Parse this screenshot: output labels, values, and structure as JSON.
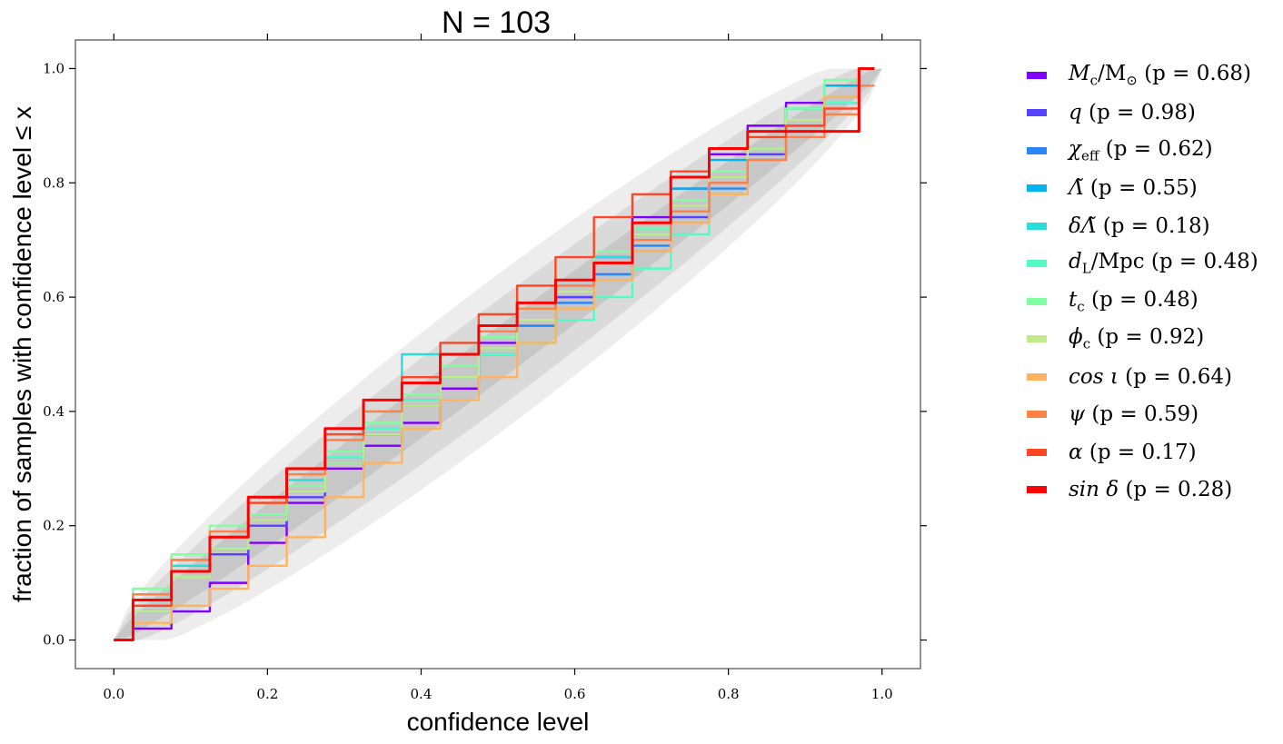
{
  "chart_data": {
    "type": "line",
    "title": "N = 103",
    "xlabel": "confidence level",
    "ylabel": "fraction of samples with confidence level ≤ x",
    "xlim": [
      -0.05,
      1.05
    ],
    "ylim": [
      -0.05,
      1.05
    ],
    "xticks": [
      0.0,
      0.2,
      0.4,
      0.6,
      0.8,
      1.0
    ],
    "yticks": [
      0.0,
      0.2,
      0.4,
      0.6,
      0.8,
      1.0
    ],
    "xtick_labels": [
      "0.0",
      "0.2",
      "0.4",
      "0.6",
      "0.8",
      "1.0"
    ],
    "ytick_labels": [
      "0.0",
      "0.2",
      "0.4",
      "0.6",
      "0.8",
      "1.0"
    ],
    "grid": false,
    "legend_position": "outside-right",
    "bands": [
      {
        "sigma": 3,
        "half_width_at_center": 0.14,
        "color": "#d8d8d8",
        "opacity": 0.45
      },
      {
        "sigma": 2,
        "half_width_at_center": 0.095,
        "color": "#c8c8c8",
        "opacity": 0.5
      },
      {
        "sigma": 1,
        "half_width_at_center": 0.048,
        "color": "#b8b8b8",
        "opacity": 0.55
      }
    ],
    "x": [
      0.0,
      0.05,
      0.1,
      0.15,
      0.2,
      0.25,
      0.3,
      0.35,
      0.4,
      0.45,
      0.5,
      0.55,
      0.6,
      0.65,
      0.7,
      0.75,
      0.8,
      0.85,
      0.9,
      0.95,
      0.99
    ],
    "series": [
      {
        "name": "Mc/M⊙ (p = 0.68)",
        "color": "#7f00ff",
        "values": [
          0.0,
          0.02,
          0.05,
          0.1,
          0.17,
          0.24,
          0.3,
          0.34,
          0.38,
          0.44,
          0.52,
          0.56,
          0.6,
          0.67,
          0.74,
          0.79,
          0.85,
          0.9,
          0.94,
          0.97,
          1.0
        ]
      },
      {
        "name": "q (p = 0.98)",
        "color": "#5544fe",
        "values": [
          0.0,
          0.06,
          0.11,
          0.15,
          0.2,
          0.25,
          0.31,
          0.36,
          0.42,
          0.46,
          0.51,
          0.55,
          0.6,
          0.64,
          0.68,
          0.74,
          0.8,
          0.85,
          0.9,
          0.95,
          1.0
        ]
      },
      {
        "name": "χeff (p = 0.62)",
        "color": "#2a85f9",
        "values": [
          0.0,
          0.07,
          0.14,
          0.18,
          0.22,
          0.27,
          0.32,
          0.37,
          0.41,
          0.46,
          0.5,
          0.55,
          0.59,
          0.64,
          0.69,
          0.73,
          0.79,
          0.84,
          0.89,
          0.94,
          1.0
        ]
      },
      {
        "name": "Λ̃ (p = 0.55)",
        "color": "#00b5eb",
        "values": [
          0.0,
          0.05,
          0.12,
          0.16,
          0.21,
          0.26,
          0.31,
          0.36,
          0.41,
          0.46,
          0.51,
          0.56,
          0.61,
          0.66,
          0.72,
          0.79,
          0.84,
          0.89,
          0.93,
          0.97,
          1.0
        ]
      },
      {
        "name": "δΛ̃ (p = 0.18)",
        "color": "#2adddd",
        "values": [
          0.0,
          0.08,
          0.13,
          0.18,
          0.22,
          0.28,
          0.33,
          0.4,
          0.5,
          0.52,
          0.55,
          0.59,
          0.63,
          0.67,
          0.71,
          0.76,
          0.81,
          0.86,
          0.9,
          0.95,
          1.0
        ]
      },
      {
        "name": "dL/Mpc (p = 0.48)",
        "color": "#55fbc5",
        "values": [
          0.0,
          0.06,
          0.11,
          0.16,
          0.21,
          0.27,
          0.32,
          0.37,
          0.42,
          0.46,
          0.5,
          0.52,
          0.56,
          0.6,
          0.65,
          0.71,
          0.78,
          0.84,
          0.89,
          0.94,
          1.0
        ]
      },
      {
        "name": "tc (p = 0.48)",
        "color": "#80fea0",
        "values": [
          0.0,
          0.09,
          0.15,
          0.2,
          0.22,
          0.27,
          0.33,
          0.38,
          0.43,
          0.48,
          0.53,
          0.58,
          0.63,
          0.68,
          0.72,
          0.77,
          0.82,
          0.88,
          0.93,
          0.98,
          1.0
        ]
      },
      {
        "name": "ϕc (p = 0.92)",
        "color": "#c0eb8a",
        "values": [
          0.0,
          0.05,
          0.11,
          0.16,
          0.21,
          0.26,
          0.31,
          0.36,
          0.41,
          0.46,
          0.51,
          0.56,
          0.61,
          0.66,
          0.71,
          0.76,
          0.81,
          0.86,
          0.91,
          0.95,
          1.0
        ]
      },
      {
        "name": "cos ι (p = 0.64)",
        "color": "#ffb360",
        "values": [
          0.0,
          0.03,
          0.06,
          0.09,
          0.13,
          0.18,
          0.25,
          0.31,
          0.37,
          0.42,
          0.46,
          0.52,
          0.58,
          0.63,
          0.68,
          0.73,
          0.78,
          0.84,
          0.9,
          0.95,
          1.0
        ]
      },
      {
        "name": "ψ (p = 0.59)",
        "color": "#ff8147",
        "values": [
          0.0,
          0.08,
          0.14,
          0.19,
          0.24,
          0.29,
          0.35,
          0.4,
          0.45,
          0.5,
          0.54,
          0.58,
          0.62,
          0.66,
          0.7,
          0.75,
          0.8,
          0.84,
          0.88,
          0.92,
          0.97
        ]
      },
      {
        "name": "α (p = 0.17)",
        "color": "#ff4725",
        "values": [
          0.0,
          0.06,
          0.12,
          0.18,
          0.24,
          0.3,
          0.36,
          0.42,
          0.46,
          0.52,
          0.57,
          0.62,
          0.67,
          0.74,
          0.78,
          0.82,
          0.86,
          0.88,
          0.9,
          0.93,
          1.0
        ]
      },
      {
        "name": "sin δ (p = 0.28)",
        "color": "#ff0000",
        "values": [
          0.0,
          0.07,
          0.12,
          0.18,
          0.25,
          0.3,
          0.37,
          0.42,
          0.45,
          0.5,
          0.55,
          0.59,
          0.63,
          0.66,
          0.73,
          0.81,
          0.86,
          0.89,
          0.89,
          0.89,
          1.0
        ]
      }
    ],
    "legend_labels": [
      {
        "main": "M",
        "sub": "c",
        "rest": "/M",
        "sub2": "⊙",
        "tail": " (p = 0.68)"
      },
      {
        "main": "q",
        "sub": "",
        "rest": "",
        "sub2": "",
        "tail": " (p = 0.98)"
      },
      {
        "main": "χ",
        "sub": "eff",
        "rest": "",
        "sub2": "",
        "tail": " (p = 0.62)"
      },
      {
        "main": "Λ̃",
        "sub": "",
        "rest": "",
        "sub2": "",
        "tail": " (p = 0.55)"
      },
      {
        "main": "δΛ̃",
        "sub": "",
        "rest": "",
        "sub2": "",
        "tail": " (p = 0.18)"
      },
      {
        "main": "d",
        "sub": "L",
        "rest": "/Mpc",
        "sub2": "",
        "tail": " (p = 0.48)"
      },
      {
        "main": "t",
        "sub": "c",
        "rest": "",
        "sub2": "",
        "tail": " (p = 0.48)"
      },
      {
        "main": "ϕ",
        "sub": "c",
        "rest": "",
        "sub2": "",
        "tail": " (p = 0.92)"
      },
      {
        "main": "cos ι",
        "sub": "",
        "rest": "",
        "sub2": "",
        "tail": " (p = 0.64)"
      },
      {
        "main": "ψ",
        "sub": "",
        "rest": "",
        "sub2": "",
        "tail": " (p = 0.59)"
      },
      {
        "main": "α",
        "sub": "",
        "rest": "",
        "sub2": "",
        "tail": " (p = 0.17)"
      },
      {
        "main": "sin δ",
        "sub": "",
        "rest": "",
        "sub2": "",
        "tail": " (p = 0.28)"
      }
    ]
  }
}
